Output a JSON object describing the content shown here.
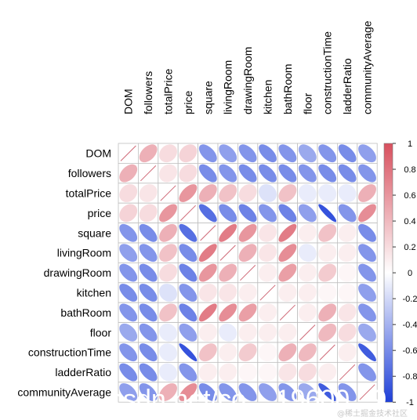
{
  "chart_data": {
    "type": "heatmap",
    "style": "ellipse-correlation-matrix",
    "variables": [
      "DOM",
      "followers",
      "totalPrice",
      "price",
      "square",
      "livingRoom",
      "drawingRoom",
      "kitchen",
      "bathRoom",
      "floor",
      "constructionTime",
      "ladderRatio",
      "communityAverage"
    ],
    "matrix": [
      [
        1.0,
        0.45,
        0.2,
        0.25,
        -0.55,
        -0.5,
        -0.55,
        -0.6,
        -0.55,
        -0.45,
        -0.55,
        -0.6,
        -0.5
      ],
      [
        0.45,
        1.0,
        0.15,
        0.2,
        -0.6,
        -0.55,
        -0.6,
        -0.6,
        -0.6,
        -0.55,
        -0.6,
        -0.6,
        -0.55
      ],
      [
        0.2,
        0.15,
        1.0,
        0.6,
        0.45,
        0.35,
        0.2,
        -0.15,
        0.35,
        -0.1,
        -0.1,
        -0.1,
        0.45
      ],
      [
        0.25,
        0.2,
        0.6,
        1.0,
        -0.75,
        -0.6,
        -0.65,
        -0.55,
        -0.65,
        -0.5,
        -0.9,
        -0.55,
        0.65
      ],
      [
        -0.55,
        -0.6,
        0.45,
        -0.75,
        1.0,
        0.75,
        0.6,
        0.15,
        0.75,
        0.1,
        0.35,
        0.1,
        -0.6
      ],
      [
        -0.5,
        -0.55,
        0.35,
        -0.6,
        0.75,
        1.0,
        0.45,
        0.15,
        0.65,
        -0.1,
        0.1,
        0.1,
        -0.55
      ],
      [
        -0.55,
        -0.6,
        0.2,
        -0.65,
        0.6,
        0.45,
        1.0,
        0.1,
        0.55,
        0.1,
        0.3,
        0.05,
        -0.55
      ],
      [
        -0.6,
        -0.6,
        -0.15,
        -0.55,
        0.15,
        0.15,
        0.1,
        1.0,
        0.1,
        0.1,
        0.05,
        0.05,
        -0.5
      ],
      [
        -0.55,
        -0.6,
        0.35,
        -0.65,
        0.75,
        0.65,
        0.55,
        0.1,
        1.0,
        0.1,
        0.45,
        0.15,
        -0.55
      ],
      [
        -0.45,
        -0.55,
        -0.1,
        -0.5,
        0.1,
        -0.1,
        0.1,
        0.1,
        0.1,
        1.0,
        0.4,
        0.2,
        -0.45
      ],
      [
        -0.55,
        -0.6,
        -0.1,
        -0.9,
        0.35,
        0.1,
        0.3,
        0.05,
        0.45,
        0.4,
        1.0,
        0.1,
        -0.85
      ],
      [
        -0.6,
        -0.6,
        -0.1,
        -0.55,
        0.1,
        0.1,
        0.05,
        0.05,
        0.15,
        0.2,
        0.1,
        1.0,
        -0.55
      ],
      [
        -0.5,
        -0.55,
        0.45,
        0.65,
        -0.6,
        -0.55,
        -0.55,
        -0.5,
        -0.55,
        -0.45,
        -0.85,
        -0.55,
        1.0
      ]
    ],
    "colorbar": {
      "range": [
        -1,
        1
      ],
      "ticks": [
        "1",
        "0.8",
        "0.6",
        "0.4",
        "0.2",
        "0",
        "-0.2",
        "-0.4",
        "-0.6",
        "-0.8",
        "-1"
      ]
    },
    "colors": {
      "negative": "#1e3fd8",
      "neutral": "#ffffff",
      "positive": "#d8505e",
      "grid": "#bfbfbf",
      "diagonal_line": "#d06a78"
    }
  },
  "watermark": {
    "overlay": "csdn.net/co... 19600...9",
    "credit": "@稀土掘金技术社区"
  }
}
